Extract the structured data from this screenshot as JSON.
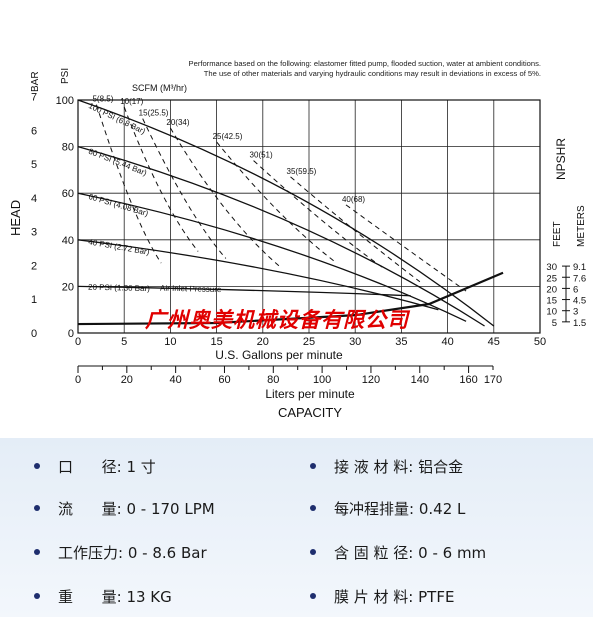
{
  "notes": [
    "Performance based on the following: elastomer fitted pump, flooded suction, water at ambient conditions.",
    "The use of other materials and varying hydraulic conditions may result in deviations in excess of 5%."
  ],
  "watermark": "广州奥美机械设备有限公司",
  "chart_data": {
    "type": "line",
    "title": "",
    "xlabel": "U.S. Gallons per minute",
    "xlabel2": "Liters per minute",
    "capacity_label": "CAPACITY",
    "head_label": "HEAD",
    "npshr_label": "NPSHR",
    "bar_label": "BAR",
    "psi_label": "PSI",
    "feet_label": "FEET",
    "meters_label": "METERS",
    "scfm_label": "SCFM (M³/hr)",
    "x_ticks": [
      "0",
      "5",
      "10",
      "15",
      "20",
      "25",
      "30",
      "35",
      "40",
      "45",
      "50"
    ],
    "xlim": [
      0,
      50
    ],
    "lpm_ticks": [
      "0",
      "20",
      "40",
      "60",
      "80",
      "100",
      "120",
      "140",
      "160",
      "170"
    ],
    "psi_ticks": [
      "0",
      "20",
      "40",
      "60",
      "80",
      "100"
    ],
    "ylim": [
      0,
      100
    ],
    "bar_ticks": [
      "0",
      "1",
      "2",
      "3",
      "4",
      "5",
      "6",
      "7"
    ],
    "npshr_feet_ticks": [
      "5",
      "10",
      "15",
      "20",
      "25",
      "30"
    ],
    "npshr_meter_ticks": [
      "1.5",
      "3",
      "4.5",
      "6",
      "7.6",
      "9.1"
    ],
    "grid": true,
    "pressure_lines": [
      {
        "label": "100 PSI (6.8 Bar)",
        "points": [
          [
            0,
            100
          ],
          [
            45,
            3
          ]
        ]
      },
      {
        "label": "80 PSI (5.44 Bar)",
        "points": [
          [
            0,
            80
          ],
          [
            44,
            3
          ]
        ]
      },
      {
        "label": "60 PSI (4.08 Bar)",
        "points": [
          [
            0,
            60
          ],
          [
            42,
            5
          ]
        ]
      },
      {
        "label": "40 PSI (2.72 Bar)",
        "points": [
          [
            0,
            40
          ],
          [
            39,
            10
          ]
        ]
      },
      {
        "label": "20 PSI (1.36 Bar)",
        "label2": "Air Inlet Pressure",
        "points": [
          [
            0,
            20
          ],
          [
            36,
            16
          ]
        ]
      }
    ],
    "air_consumption_lines": [
      {
        "label": "5(8.5)",
        "points": [
          [
            2,
            98
          ],
          [
            6,
            48
          ],
          [
            9,
            30
          ]
        ]
      },
      {
        "label": "10(17)",
        "points": [
          [
            5,
            97
          ],
          [
            9,
            55
          ],
          [
            13,
            35
          ]
        ]
      },
      {
        "label": "15(25.5)",
        "points": [
          [
            7,
            92
          ],
          [
            12,
            50
          ],
          [
            16,
            32
          ]
        ]
      },
      {
        "label": "20(34)",
        "points": [
          [
            10,
            88
          ],
          [
            16,
            48
          ],
          [
            22,
            28
          ]
        ]
      },
      {
        "label": "25(42.5)",
        "points": [
          [
            15,
            82
          ],
          [
            22,
            48
          ],
          [
            28,
            30
          ]
        ]
      },
      {
        "label": "30(51)",
        "points": [
          [
            19,
            74
          ],
          [
            27,
            45
          ],
          [
            33,
            28
          ]
        ]
      },
      {
        "label": "35(59.5)",
        "points": [
          [
            23,
            67
          ],
          [
            31,
            40
          ],
          [
            37,
            22
          ]
        ]
      },
      {
        "label": "40(68)",
        "points": [
          [
            29,
            55
          ],
          [
            37,
            32
          ],
          [
            42,
            18
          ]
        ]
      }
    ],
    "npshr_curve": {
      "name": "NPSHR",
      "points": [
        [
          0,
          4
        ],
        [
          15,
          4.5
        ],
        [
          30,
          8
        ],
        [
          38,
          13
        ],
        [
          46,
          27
        ]
      ]
    }
  },
  "specs": [
    {
      "label": "口      径:",
      "value": "1 寸"
    },
    {
      "label": "接 液 材 料:",
      "value": "铝合金"
    },
    {
      "label": "流      量:",
      "value": "0 - 170 LPM"
    },
    {
      "label": "每冲程排量:",
      "value": "0.42 L"
    },
    {
      "label": "工作压力:",
      "value": "0 - 8.6 Bar"
    },
    {
      "label": "含 固 粒 径:",
      "value": "0 - 6 mm"
    },
    {
      "label": "重      量:",
      "value": "13 KG"
    },
    {
      "label": "膜 片 材 料:",
      "value": "PTFE"
    }
  ]
}
